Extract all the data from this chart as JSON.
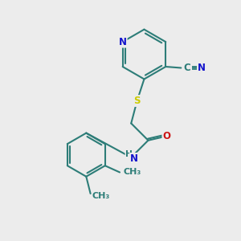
{
  "bg_color": "#ececec",
  "bond_color": "#2d7d78",
  "bond_width": 1.5,
  "atom_colors": {
    "N": "#1414cc",
    "O": "#cc1414",
    "S": "#cccc00",
    "C": "#2d7d78",
    "H": "#2d7d78"
  },
  "font_size": 8.5,
  "fig_size": [
    3.0,
    3.0
  ],
  "dpi": 100
}
